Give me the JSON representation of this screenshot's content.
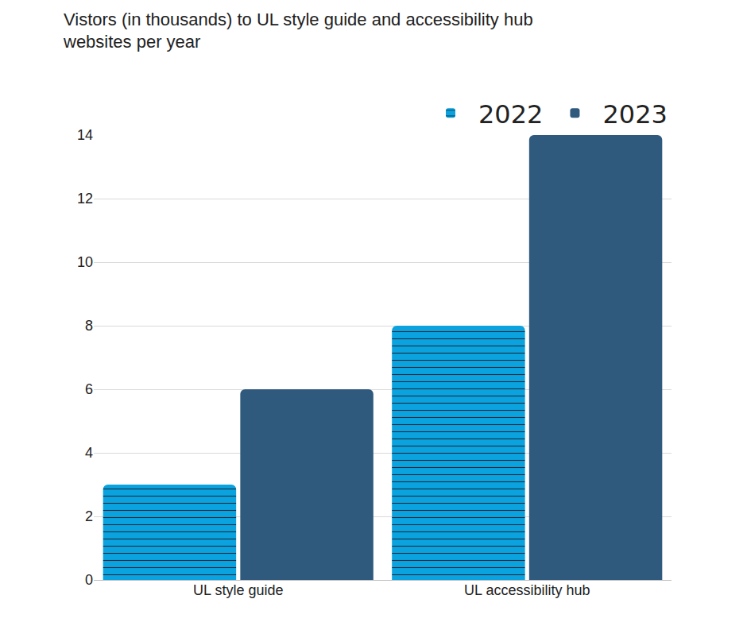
{
  "chart_data": {
    "type": "bar",
    "title": "Vistors (in thousands) to UL style guide and accessibility hub websites per year",
    "categories": [
      "UL style guide",
      "UL accessibility hub"
    ],
    "series": [
      {
        "name": "2022",
        "color": "#0aa3df",
        "marker": "zigzag",
        "values": [
          3,
          8
        ]
      },
      {
        "name": "2023",
        "color": "#2f5a7e",
        "values": [
          6,
          14
        ]
      }
    ],
    "ylim": [
      0,
      14
    ],
    "yticks": [
      0,
      2,
      4,
      6,
      8,
      10,
      12,
      14
    ],
    "grid": true,
    "legend": "top right"
  }
}
